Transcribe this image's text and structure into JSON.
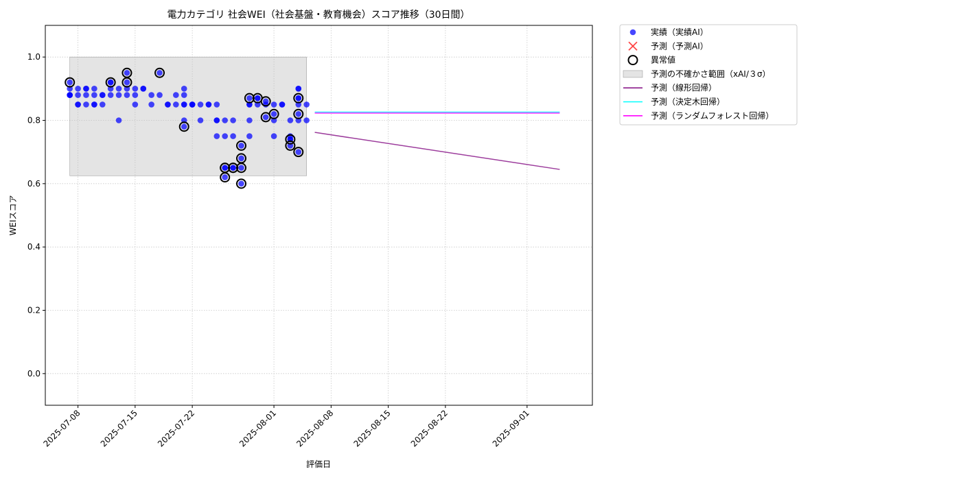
{
  "chart_data": {
    "type": "scatter",
    "title": "電力カテゴリ 社会WEI（社会基盤・教育機会）スコア推移（30日間）",
    "xlabel": "評価日",
    "ylabel": "WEIスコア",
    "xlim": [
      "2025-07-04",
      "2025-09-09"
    ],
    "ylim": [
      -0.1,
      1.1
    ],
    "x_ticks": [
      "2025-07-08",
      "2025-07-15",
      "2025-07-22",
      "2025-08-01",
      "2025-08-08",
      "2025-08-15",
      "2025-08-22",
      "2025-09-01"
    ],
    "y_ticks": [
      "0.0",
      "0.2",
      "0.4",
      "0.6",
      "0.8",
      "1.0"
    ],
    "grid": true,
    "legend_position": "outside-top-right",
    "colors": {
      "actual": "#0000ff",
      "predicted": "#ff3333",
      "anomaly": "#000000",
      "band": "#bfbfbf",
      "linear": "#8b1a8b",
      "tree": "#00ffff",
      "forest": "#ff00ff"
    },
    "legend": [
      {
        "key": "actual",
        "label": "実績（実績AI）",
        "marker": "dot"
      },
      {
        "key": "predicted",
        "label": "予測（予測AI）",
        "marker": "cross"
      },
      {
        "key": "anomaly",
        "label": "異常値",
        "marker": "ring"
      },
      {
        "key": "band",
        "label": "予測の不確かさ範囲（xAI/３σ）",
        "marker": "rect"
      },
      {
        "key": "linear",
        "label": "予測（線形回帰）",
        "marker": "line"
      },
      {
        "key": "tree",
        "label": "予測（決定木回帰）",
        "marker": "line"
      },
      {
        "key": "forest",
        "label": "予測（ランダムフォレスト回帰）",
        "marker": "line"
      }
    ],
    "uncertainty_band": {
      "x_start": "2025-07-07",
      "x_end": "2025-08-05",
      "y_low": 0.625,
      "y_high": 1.0
    },
    "series": [
      {
        "key": "actual",
        "points": [
          [
            "2025-07-07",
            0.88
          ],
          [
            "2025-07-07",
            0.88
          ],
          [
            "2025-07-07",
            0.9
          ],
          [
            "2025-07-07",
            0.92
          ],
          [
            "2025-07-07",
            0.88
          ],
          [
            "2025-07-08",
            0.88
          ],
          [
            "2025-07-08",
            0.85
          ],
          [
            "2025-07-08",
            0.9
          ],
          [
            "2025-07-08",
            0.85
          ],
          [
            "2025-07-09",
            0.9
          ],
          [
            "2025-07-09",
            0.88
          ],
          [
            "2025-07-09",
            0.85
          ],
          [
            "2025-07-09",
            0.9
          ],
          [
            "2025-07-10",
            0.85
          ],
          [
            "2025-07-10",
            0.88
          ],
          [
            "2025-07-10",
            0.85
          ],
          [
            "2025-07-10",
            0.9
          ],
          [
            "2025-07-11",
            0.85
          ],
          [
            "2025-07-11",
            0.88
          ],
          [
            "2025-07-11",
            0.88
          ],
          [
            "2025-07-12",
            0.9
          ],
          [
            "2025-07-12",
            0.88
          ],
          [
            "2025-07-12",
            0.92
          ],
          [
            "2025-07-12",
            0.92
          ],
          [
            "2025-07-13",
            0.88
          ],
          [
            "2025-07-13",
            0.8
          ],
          [
            "2025-07-13",
            0.9
          ],
          [
            "2025-07-14",
            0.88
          ],
          [
            "2025-07-14",
            0.92
          ],
          [
            "2025-07-14",
            0.95
          ],
          [
            "2025-07-14",
            0.9
          ],
          [
            "2025-07-15",
            0.88
          ],
          [
            "2025-07-15",
            0.85
          ],
          [
            "2025-07-15",
            0.9
          ],
          [
            "2025-07-16",
            0.9
          ],
          [
            "2025-07-16",
            0.9
          ],
          [
            "2025-07-17",
            0.85
          ],
          [
            "2025-07-17",
            0.88
          ],
          [
            "2025-07-18",
            0.95
          ],
          [
            "2025-07-18",
            0.88
          ],
          [
            "2025-07-19",
            0.85
          ],
          [
            "2025-07-19",
            0.85
          ],
          [
            "2025-07-20",
            0.88
          ],
          [
            "2025-07-20",
            0.85
          ],
          [
            "2025-07-21",
            0.78
          ],
          [
            "2025-07-21",
            0.9
          ],
          [
            "2025-07-21",
            0.85
          ],
          [
            "2025-07-21",
            0.88
          ],
          [
            "2025-07-21",
            0.8
          ],
          [
            "2025-07-21",
            0.85
          ],
          [
            "2025-07-22",
            0.85
          ],
          [
            "2025-07-22",
            0.85
          ],
          [
            "2025-07-22",
            0.85
          ],
          [
            "2025-07-23",
            0.8
          ],
          [
            "2025-07-23",
            0.85
          ],
          [
            "2025-07-24",
            0.85
          ],
          [
            "2025-07-24",
            0.85
          ],
          [
            "2025-07-25",
            0.8
          ],
          [
            "2025-07-25",
            0.75
          ],
          [
            "2025-07-25",
            0.85
          ],
          [
            "2025-07-25",
            0.8
          ],
          [
            "2025-07-26",
            0.65
          ],
          [
            "2025-07-26",
            0.75
          ],
          [
            "2025-07-26",
            0.8
          ],
          [
            "2025-07-26",
            0.62
          ],
          [
            "2025-07-26",
            0.65
          ],
          [
            "2025-07-27",
            0.75
          ],
          [
            "2025-07-27",
            0.65
          ],
          [
            "2025-07-27",
            0.8
          ],
          [
            "2025-07-27",
            0.65
          ],
          [
            "2025-07-28",
            0.72
          ],
          [
            "2025-07-28",
            0.68
          ],
          [
            "2025-07-28",
            0.65
          ],
          [
            "2025-07-28",
            0.6
          ],
          [
            "2025-07-29",
            0.87
          ],
          [
            "2025-07-29",
            0.85
          ],
          [
            "2025-07-29",
            0.85
          ],
          [
            "2025-07-29",
            0.8
          ],
          [
            "2025-07-29",
            0.75
          ],
          [
            "2025-07-30",
            0.87
          ],
          [
            "2025-07-30",
            0.87
          ],
          [
            "2025-07-30",
            0.85
          ],
          [
            "2025-07-31",
            0.86
          ],
          [
            "2025-07-31",
            0.85
          ],
          [
            "2025-07-31",
            0.81
          ],
          [
            "2025-08-01",
            0.82
          ],
          [
            "2025-08-01",
            0.8
          ],
          [
            "2025-08-01",
            0.85
          ],
          [
            "2025-08-01",
            0.75
          ],
          [
            "2025-08-02",
            0.85
          ],
          [
            "2025-08-02",
            0.85
          ],
          [
            "2025-08-03",
            0.75
          ],
          [
            "2025-08-03",
            0.74
          ],
          [
            "2025-08-03",
            0.72
          ],
          [
            "2025-08-03",
            0.8
          ],
          [
            "2025-08-03",
            0.74
          ],
          [
            "2025-08-04",
            0.9
          ],
          [
            "2025-08-04",
            0.87
          ],
          [
            "2025-08-04",
            0.82
          ],
          [
            "2025-08-04",
            0.7
          ],
          [
            "2025-08-04",
            0.8
          ],
          [
            "2025-08-04",
            0.85
          ],
          [
            "2025-08-04",
            0.9
          ],
          [
            "2025-08-04",
            0.87
          ],
          [
            "2025-08-05",
            0.85
          ],
          [
            "2025-08-05",
            0.8
          ]
        ]
      },
      {
        "key": "anomaly",
        "points": [
          [
            "2025-07-07",
            0.92
          ],
          [
            "2025-07-12",
            0.92
          ],
          [
            "2025-07-14",
            0.95
          ],
          [
            "2025-07-14",
            0.92
          ],
          [
            "2025-07-18",
            0.95
          ],
          [
            "2025-07-21",
            0.78
          ],
          [
            "2025-07-26",
            0.65
          ],
          [
            "2025-07-26",
            0.62
          ],
          [
            "2025-07-26",
            0.65
          ],
          [
            "2025-07-27",
            0.65
          ],
          [
            "2025-07-27",
            0.65
          ],
          [
            "2025-07-28",
            0.72
          ],
          [
            "2025-07-28",
            0.68
          ],
          [
            "2025-07-28",
            0.65
          ],
          [
            "2025-07-28",
            0.6
          ],
          [
            "2025-07-29",
            0.87
          ],
          [
            "2025-07-30",
            0.87
          ],
          [
            "2025-07-31",
            0.86
          ],
          [
            "2025-07-31",
            0.81
          ],
          [
            "2025-08-01",
            0.82
          ],
          [
            "2025-08-03",
            0.74
          ],
          [
            "2025-08-03",
            0.72
          ],
          [
            "2025-08-04",
            0.87
          ],
          [
            "2025-08-04",
            0.82
          ],
          [
            "2025-08-04",
            0.7
          ]
        ]
      },
      {
        "key": "linear",
        "points": [
          [
            "2025-08-06",
            0.762
          ],
          [
            "2025-09-05",
            0.645
          ]
        ]
      },
      {
        "key": "tree",
        "points": [
          [
            "2025-08-06",
            0.826
          ],
          [
            "2025-09-05",
            0.826
          ]
        ]
      },
      {
        "key": "forest",
        "points": [
          [
            "2025-08-06",
            0.823
          ],
          [
            "2025-09-05",
            0.823
          ]
        ]
      }
    ]
  }
}
